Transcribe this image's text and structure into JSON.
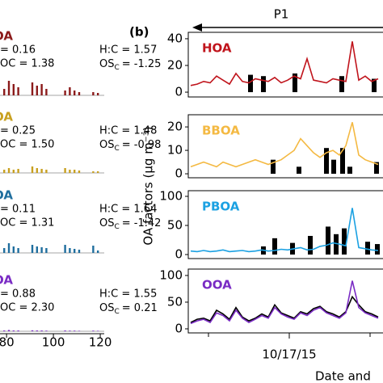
{
  "figure": {
    "panel_label": "(b)",
    "period": "P1",
    "y_axis_label": "OA factors (μg m⁻³)",
    "x_axis_label": "Date and"
  },
  "chart_data": [
    {
      "type": "bar",
      "name": "OA",
      "color": "#8b1a1a",
      "oc": "= 0.16",
      "hc": "H:C = 1.57",
      "omoc": "OC = 1.38",
      "osc": [
        "OS",
        "C",
        "= -1.25"
      ],
      "xlim": [
        77.2,
        121.7
      ],
      "ylim": [
        0,
        2.5
      ],
      "x": [
        79,
        81,
        83,
        85,
        91,
        93,
        95,
        97,
        105,
        107,
        109,
        111,
        117,
        119
      ],
      "values": [
        0.4,
        0.9,
        0.7,
        0.5,
        0.8,
        0.6,
        0.7,
        0.4,
        0.3,
        0.5,
        0.3,
        0.2,
        0.2,
        0.15
      ]
    },
    {
      "type": "bar",
      "name": "OA",
      "color": "#c8a020",
      "oc": "= 0.25",
      "hc": "H:C = 1.48",
      "omoc": "OC = 1.50",
      "osc": [
        "OS",
        "C",
        "= -0.98"
      ],
      "xlim": [
        77.2,
        121.7
      ],
      "ylim": [
        0,
        2.5
      ],
      "x": [
        79,
        81,
        83,
        85,
        91,
        93,
        95,
        97,
        105,
        107,
        109,
        111,
        117,
        119
      ],
      "values": [
        0.2,
        0.3,
        0.2,
        0.25,
        0.4,
        0.3,
        0.25,
        0.2,
        0.3,
        0.2,
        0.2,
        0.15,
        0.1,
        0.1
      ]
    },
    {
      "type": "bar",
      "name": "OA",
      "color": "#1f6e9e",
      "oc": "= 0.11",
      "hc": "H:C = 1.64",
      "omoc": "OC = 1.31",
      "osc": [
        "OS",
        "C",
        "= -1.42"
      ],
      "xlim": [
        77.2,
        121.7
      ],
      "ylim": [
        0,
        2.5
      ],
      "x": [
        79,
        81,
        83,
        85,
        91,
        93,
        95,
        97,
        105,
        107,
        109,
        111,
        117,
        119
      ],
      "values": [
        0.3,
        0.6,
        0.4,
        0.3,
        0.5,
        0.4,
        0.35,
        0.3,
        0.5,
        0.3,
        0.25,
        0.2,
        0.45,
        0.15
      ]
    },
    {
      "type": "bar",
      "name": "OA",
      "color": "#7a2bc4",
      "oc": "= 0.88",
      "hc": "H:C = 1.55",
      "omoc": "OC = 2.30",
      "osc": [
        "OS",
        "C",
        "= 0.21"
      ],
      "xlim": [
        77.2,
        121.7
      ],
      "ylim": [
        0,
        2.5
      ],
      "xticks": [
        80,
        100,
        120
      ],
      "x": [
        79,
        81,
        83,
        85,
        91,
        93,
        95,
        97,
        105,
        107,
        109,
        111,
        117,
        119
      ],
      "values": [
        0.05,
        0.08,
        0.05,
        0.05,
        0.06,
        0.05,
        0.05,
        0.04,
        0.05,
        0.04,
        0.04,
        0.03,
        0.04,
        0.03
      ]
    },
    {
      "type": "line",
      "xlim": [
        15.75,
        18.16
      ],
      "ylim": [
        -3.6,
        44.8
      ],
      "yticks": [
        0,
        20,
        40
      ],
      "series": [
        {
          "name": "HOA",
          "color": "#c0141c",
          "x": [
            15.78,
            15.86,
            15.94,
            16.02,
            16.1,
            16.18,
            16.26,
            16.34,
            16.42,
            16.5,
            16.58,
            16.66,
            16.74,
            16.82,
            16.9,
            16.98,
            17.06,
            17.14,
            17.22,
            17.3,
            17.38,
            17.46,
            17.54,
            17.62,
            17.7,
            17.78,
            17.86,
            17.94,
            18.02,
            18.1
          ],
          "values": [
            5,
            6,
            8,
            7,
            12,
            9,
            6,
            14,
            8,
            7,
            10,
            9,
            8,
            11,
            7,
            9,
            12,
            10,
            25,
            9,
            8,
            7,
            10,
            9,
            8,
            38,
            9,
            12,
            8,
            10
          ]
        },
        {
          "type": "bar",
          "color": "#000000",
          "x": [
            16.52,
            16.68,
            17.07,
            17.65,
            18.05
          ],
          "values": [
            13,
            12,
            14,
            12,
            10
          ]
        }
      ]
    },
    {
      "type": "line",
      "xlim": [
        15.75,
        18.16
      ],
      "ylim": [
        -1.7,
        25.2
      ],
      "yticks": [
        0,
        10,
        20
      ],
      "series": [
        {
          "name": "BBOA",
          "color": "#f4b942",
          "x": [
            15.78,
            15.86,
            15.94,
            16.02,
            16.1,
            16.18,
            16.26,
            16.34,
            16.42,
            16.5,
            16.58,
            16.66,
            16.74,
            16.82,
            16.9,
            16.98,
            17.06,
            17.14,
            17.22,
            17.3,
            17.38,
            17.46,
            17.54,
            17.62,
            17.7,
            17.78,
            17.86,
            17.94,
            18.02,
            18.1
          ],
          "values": [
            3,
            4,
            5,
            4,
            3,
            5,
            4,
            3,
            4,
            5,
            6,
            5,
            4,
            5,
            6,
            8,
            10,
            15,
            12,
            9,
            7,
            9,
            10,
            8,
            12,
            22,
            8,
            6,
            5,
            4
          ]
        },
        {
          "type": "bar",
          "color": "#000000",
          "x": [
            16.8,
            17.12,
            17.46,
            17.55,
            17.66,
            17.75,
            18.08
          ],
          "values": [
            6,
            3,
            11,
            6,
            11,
            3,
            5
          ]
        }
      ]
    },
    {
      "type": "line",
      "xlim": [
        15.75,
        18.16
      ],
      "ylim": [
        -6.9,
        109.7
      ],
      "yticks": [
        0,
        50,
        100
      ],
      "series": [
        {
          "name": "PBOA",
          "color": "#1ba1e2",
          "x": [
            15.78,
            15.86,
            15.94,
            16.02,
            16.1,
            16.18,
            16.26,
            16.34,
            16.42,
            16.5,
            16.58,
            16.66,
            16.74,
            16.82,
            16.9,
            16.98,
            17.06,
            17.14,
            17.22,
            17.3,
            17.38,
            17.46,
            17.54,
            17.62,
            17.7,
            17.78,
            17.86,
            17.94,
            18.02,
            18.1
          ],
          "values": [
            6,
            5,
            7,
            5,
            6,
            8,
            5,
            6,
            7,
            5,
            6,
            8,
            6,
            7,
            9,
            8,
            10,
            12,
            8,
            9,
            14,
            16,
            20,
            18,
            15,
            80,
            12,
            10,
            8,
            7
          ]
        },
        {
          "type": "bar",
          "color": "#000000",
          "x": [
            16.68,
            16.82,
            17.04,
            17.26,
            17.48,
            17.58,
            17.68,
            17.97,
            18.09
          ],
          "values": [
            14,
            28,
            20,
            32,
            48,
            35,
            45,
            22,
            18
          ]
        }
      ]
    },
    {
      "type": "line",
      "xlim": [
        15.75,
        18.16
      ],
      "ylim": [
        -7.6,
        112
      ],
      "yticks": [
        0,
        50,
        100
      ],
      "xticks": [
        {
          "value": 17,
          "label": "10/17/15"
        }
      ],
      "xminor": [
        16,
        18
      ],
      "series": [
        {
          "color": "#000000",
          "x": [
            15.78,
            15.86,
            15.94,
            16.02,
            16.1,
            16.18,
            16.26,
            16.34,
            16.42,
            16.5,
            16.58,
            16.66,
            16.74,
            16.82,
            16.9,
            16.98,
            17.06,
            17.14,
            17.22,
            17.3,
            17.38,
            17.46,
            17.54,
            17.62,
            17.7,
            17.78,
            17.86,
            17.94,
            18.02,
            18.1
          ],
          "values": [
            12,
            18,
            20,
            15,
            35,
            28,
            18,
            40,
            22,
            15,
            20,
            28,
            22,
            45,
            30,
            25,
            20,
            32,
            28,
            38,
            42,
            32,
            28,
            22,
            32,
            60,
            45,
            32,
            28,
            22
          ]
        },
        {
          "name": "OOA",
          "color": "#7a2bc4",
          "x": [
            15.78,
            15.86,
            15.94,
            16.02,
            16.1,
            16.18,
            16.26,
            16.34,
            16.42,
            16.5,
            16.58,
            16.66,
            16.74,
            16.82,
            16.9,
            16.98,
            17.06,
            17.14,
            17.22,
            17.3,
            17.38,
            17.46,
            17.54,
            17.62,
            17.7,
            17.78,
            17.86,
            17.94,
            18.02,
            18.1
          ],
          "values": [
            10,
            15,
            18,
            12,
            30,
            25,
            15,
            35,
            20,
            12,
            18,
            25,
            20,
            40,
            28,
            22,
            18,
            30,
            25,
            35,
            40,
            30,
            25,
            20,
            30,
            90,
            40,
            30,
            25,
            20
          ]
        }
      ]
    }
  ]
}
